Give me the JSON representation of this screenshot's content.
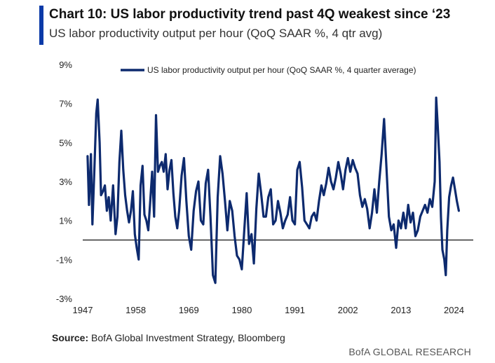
{
  "header": {
    "title": "Chart 10: US labor productivity trend past 4Q weakest since ‘23",
    "subtitle": "US labor productivity output per hour (QoQ SAAR %, 4 qtr avg)"
  },
  "chart_data": {
    "type": "line",
    "title": "Chart 10: US labor productivity trend past 4Q weakest since ‘23",
    "subtitle": "US labor productivity output per hour (QoQ SAAR %, 4 qtr avg)",
    "ylim": [
      -3,
      9
    ],
    "yticks": [
      -3,
      -1,
      1,
      3,
      5,
      7,
      9
    ],
    "ytick_labels": [
      "-3%",
      "-1%",
      "1%",
      "3%",
      "5%",
      "7%",
      "9%"
    ],
    "xlim": [
      1947,
      2028
    ],
    "xticks": [
      1947,
      1958,
      1969,
      1980,
      1991,
      2002,
      2013,
      2024
    ],
    "xtick_labels": [
      "1947",
      "1958",
      "1969",
      "1980",
      "1991",
      "2002",
      "2013",
      "2024"
    ],
    "zero_line": true,
    "legend_position": "top",
    "series": [
      {
        "name": "US labor productivity output per hour (QoQ SAAR %, 4 quarter average)",
        "color": "#0d2a6e",
        "x": [
          1948.0,
          1948.3,
          1948.7,
          1949.0,
          1949.4,
          1949.8,
          1950.1,
          1950.5,
          1950.8,
          1951.2,
          1951.6,
          1952.0,
          1952.4,
          1952.8,
          1953.3,
          1953.8,
          1954.2,
          1954.6,
          1955.0,
          1955.4,
          1955.8,
          1956.2,
          1956.6,
          1957.0,
          1957.4,
          1957.8,
          1958.2,
          1958.6,
          1959.0,
          1959.4,
          1959.8,
          1960.2,
          1960.6,
          1961.0,
          1961.4,
          1961.8,
          1962.2,
          1962.6,
          1963.0,
          1963.4,
          1963.8,
          1964.2,
          1964.6,
          1965.0,
          1965.4,
          1965.8,
          1966.2,
          1966.6,
          1967.0,
          1967.5,
          1968.0,
          1968.5,
          1969.0,
          1969.5,
          1970.0,
          1970.5,
          1971.0,
          1971.5,
          1972.0,
          1972.5,
          1973.0,
          1973.5,
          1974.0,
          1974.5,
          1975.0,
          1975.5,
          1976.0,
          1976.5,
          1977.0,
          1977.5,
          1978.0,
          1978.5,
          1979.0,
          1979.5,
          1980.0,
          1980.5,
          1981.0,
          1981.5,
          1982.0,
          1982.5,
          1983.0,
          1983.5,
          1984.0,
          1984.5,
          1985.0,
          1985.5,
          1986.0,
          1986.5,
          1987.0,
          1987.5,
          1988.0,
          1988.5,
          1989.0,
          1989.5,
          1990.0,
          1990.5,
          1991.0,
          1991.5,
          1992.0,
          1992.5,
          1993.0,
          1993.5,
          1994.0,
          1994.5,
          1995.0,
          1995.5,
          1996.0,
          1996.5,
          1997.0,
          1997.5,
          1998.0,
          1998.5,
          1999.0,
          1999.5,
          2000.0,
          2000.5,
          2001.0,
          2001.5,
          2002.0,
          2002.5,
          2003.0,
          2003.5,
          2004.0,
          2004.5,
          2005.0,
          2005.5,
          2006.0,
          2006.5,
          2007.0,
          2007.5,
          2008.0,
          2008.5,
          2009.0,
          2009.5,
          2010.0,
          2010.5,
          2011.0,
          2011.5,
          2012.0,
          2012.5,
          2013.0,
          2013.5,
          2014.0,
          2014.5,
          2015.0,
          2015.5,
          2016.0,
          2016.5,
          2017.0,
          2017.5,
          2018.0,
          2018.5,
          2019.0,
          2019.5,
          2020.0,
          2020.3,
          2020.6,
          2021.0,
          2021.3,
          2021.6,
          2022.0,
          2022.3,
          2022.6,
          2023.0,
          2023.4,
          2023.8,
          2024.2,
          2024.6,
          2025.0
        ],
        "y": [
          4.3,
          1.8,
          4.4,
          0.8,
          3.5,
          6.5,
          7.2,
          5.0,
          2.3,
          2.5,
          2.8,
          1.5,
          2.2,
          1.0,
          2.8,
          0.3,
          1.2,
          4.0,
          5.6,
          3.6,
          2.3,
          1.5,
          0.9,
          1.5,
          2.5,
          0.3,
          -0.4,
          -1.0,
          2.8,
          3.8,
          1.3,
          1.0,
          0.5,
          2.0,
          3.5,
          1.2,
          6.4,
          3.5,
          3.8,
          4.0,
          3.5,
          4.4,
          2.6,
          3.6,
          4.1,
          2.4,
          1.2,
          0.6,
          1.5,
          3.3,
          4.2,
          2.0,
          0.2,
          -0.5,
          1.5,
          2.5,
          3.0,
          1.0,
          0.8,
          2.9,
          3.6,
          1.2,
          -1.8,
          -2.2,
          2.2,
          4.3,
          3.4,
          2.0,
          0.5,
          2.0,
          1.5,
          0.2,
          -0.8,
          -1.0,
          -1.5,
          0.5,
          2.4,
          -0.2,
          0.3,
          -1.2,
          1.6,
          3.4,
          2.4,
          1.2,
          1.2,
          2.2,
          2.6,
          0.8,
          1.0,
          2.0,
          1.4,
          0.6,
          1.0,
          1.3,
          2.2,
          1.0,
          0.8,
          3.6,
          4.0,
          2.7,
          1.0,
          0.8,
          0.6,
          1.2,
          1.4,
          1.0,
          2.0,
          2.8,
          2.3,
          2.9,
          3.7,
          3.0,
          2.6,
          3.2,
          4.0,
          3.4,
          2.6,
          3.6,
          4.2,
          3.5,
          4.1,
          3.7,
          3.4,
          2.3,
          1.7,
          2.1,
          1.6,
          0.6,
          1.4,
          2.6,
          1.4,
          3.0,
          4.4,
          6.2,
          3.7,
          1.2,
          0.5,
          0.8,
          -0.4,
          1.0,
          0.6,
          1.4,
          0.6,
          1.8,
          0.9,
          1.4,
          0.2,
          0.5,
          1.2,
          1.5,
          1.8,
          1.4,
          2.1,
          1.7,
          3.0,
          7.3,
          6.0,
          4.0,
          1.2,
          -0.5,
          -1.0,
          -1.8,
          0.5,
          2.2,
          2.8,
          3.2,
          2.6,
          2.0,
          1.5
        ]
      }
    ]
  },
  "footer": {
    "source_label": "Source:",
    "source_text": "BofA Global Investment Strategy, Bloomberg",
    "brand": "BofA GLOBAL RESEARCH"
  }
}
